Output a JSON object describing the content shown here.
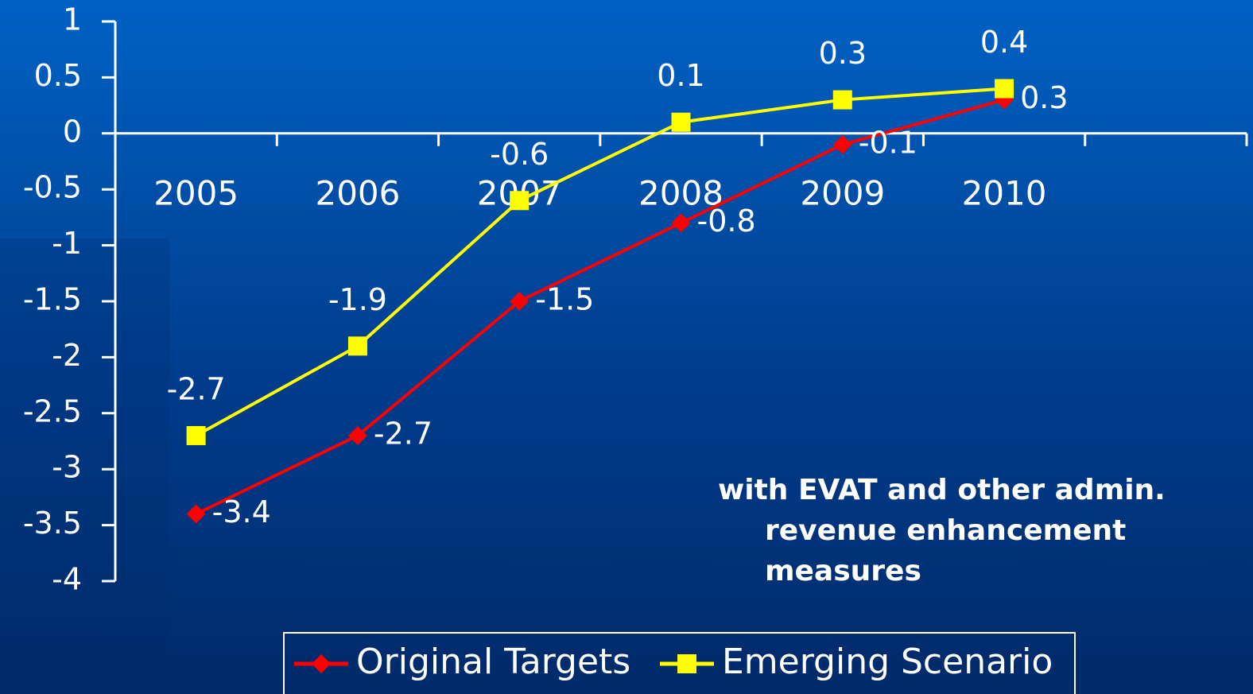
{
  "chart_data": {
    "type": "line",
    "categories": [
      "2005",
      "2006",
      "2007",
      "2008",
      "2009",
      "2010",
      null
    ],
    "series": [
      {
        "name": "Original Targets",
        "color": "#ff0000",
        "marker": "diamond",
        "label_position": "right",
        "values": [
          -3.4,
          -2.7,
          -1.5,
          -0.8,
          -0.1,
          0.3,
          null
        ]
      },
      {
        "name": "Emerging Scenario",
        "color": "#ffff00",
        "marker": "square",
        "label_position": "above",
        "values": [
          -2.7,
          -1.9,
          -0.6,
          0.1,
          0.3,
          0.4,
          null
        ]
      }
    ],
    "ylim": [
      -4,
      1
    ],
    "yticks": [
      -4,
      -3.5,
      -3,
      -2.5,
      -2,
      -1.5,
      -1,
      -0.5,
      0,
      0.5,
      1
    ],
    "grid": false,
    "legend": "bottom",
    "annotation": [
      "with EVAT and other admin.",
      "revenue enhancement",
      "measures"
    ]
  }
}
